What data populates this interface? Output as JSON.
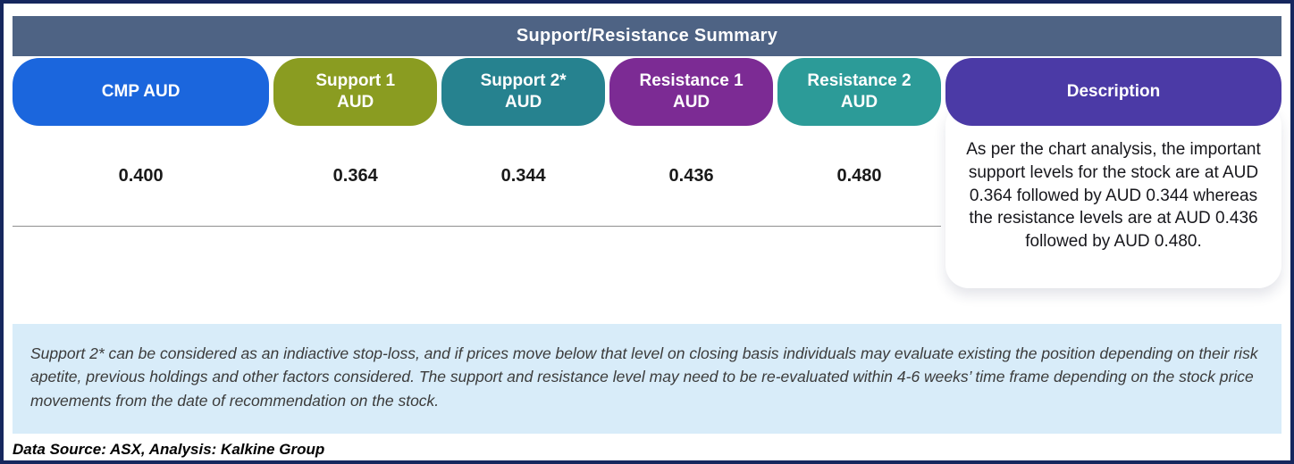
{
  "table": {
    "title": "Support/Resistance Summary",
    "columns": [
      {
        "label": "CMP AUD",
        "value": "0.400",
        "color": "#1b66dd"
      },
      {
        "label": "Support 1\nAUD",
        "value": "0.364",
        "color": "#8a9c21"
      },
      {
        "label": "Support 2*\nAUD",
        "value": "0.344",
        "color": "#26828f"
      },
      {
        "label": "Resistance 1\nAUD",
        "value": "0.436",
        "color": "#7c2b94"
      },
      {
        "label": "Resistance 2\nAUD",
        "value": "0.480",
        "color": "#2c9b98"
      }
    ],
    "description": {
      "header": "Description",
      "color": "#4b3aa6",
      "text": "As per the chart analysis, the important support levels for the stock are at AUD 0.364 followed by AUD 0.344 whereas the resistance levels are at AUD 0.436 followed by AUD 0.480."
    }
  },
  "footnote": "Support 2* can be considered as an indiactive stop-loss, and if prices move below that level on closing basis individuals may evaluate existing the position depending on their risk apetite, previous holdings and other factors considered. The support and resistance level may need to be re-evaluated within 4-6 weeks’ time frame depending on the stock price movements from  the date of recommendation on the stock.",
  "source": "Data Source: ASX, Analysis: Kalkine Group",
  "colors": {
    "frame_border": "#16275e",
    "title_bar": "#4e6384",
    "footnote_bg": "#d8ecf9"
  }
}
